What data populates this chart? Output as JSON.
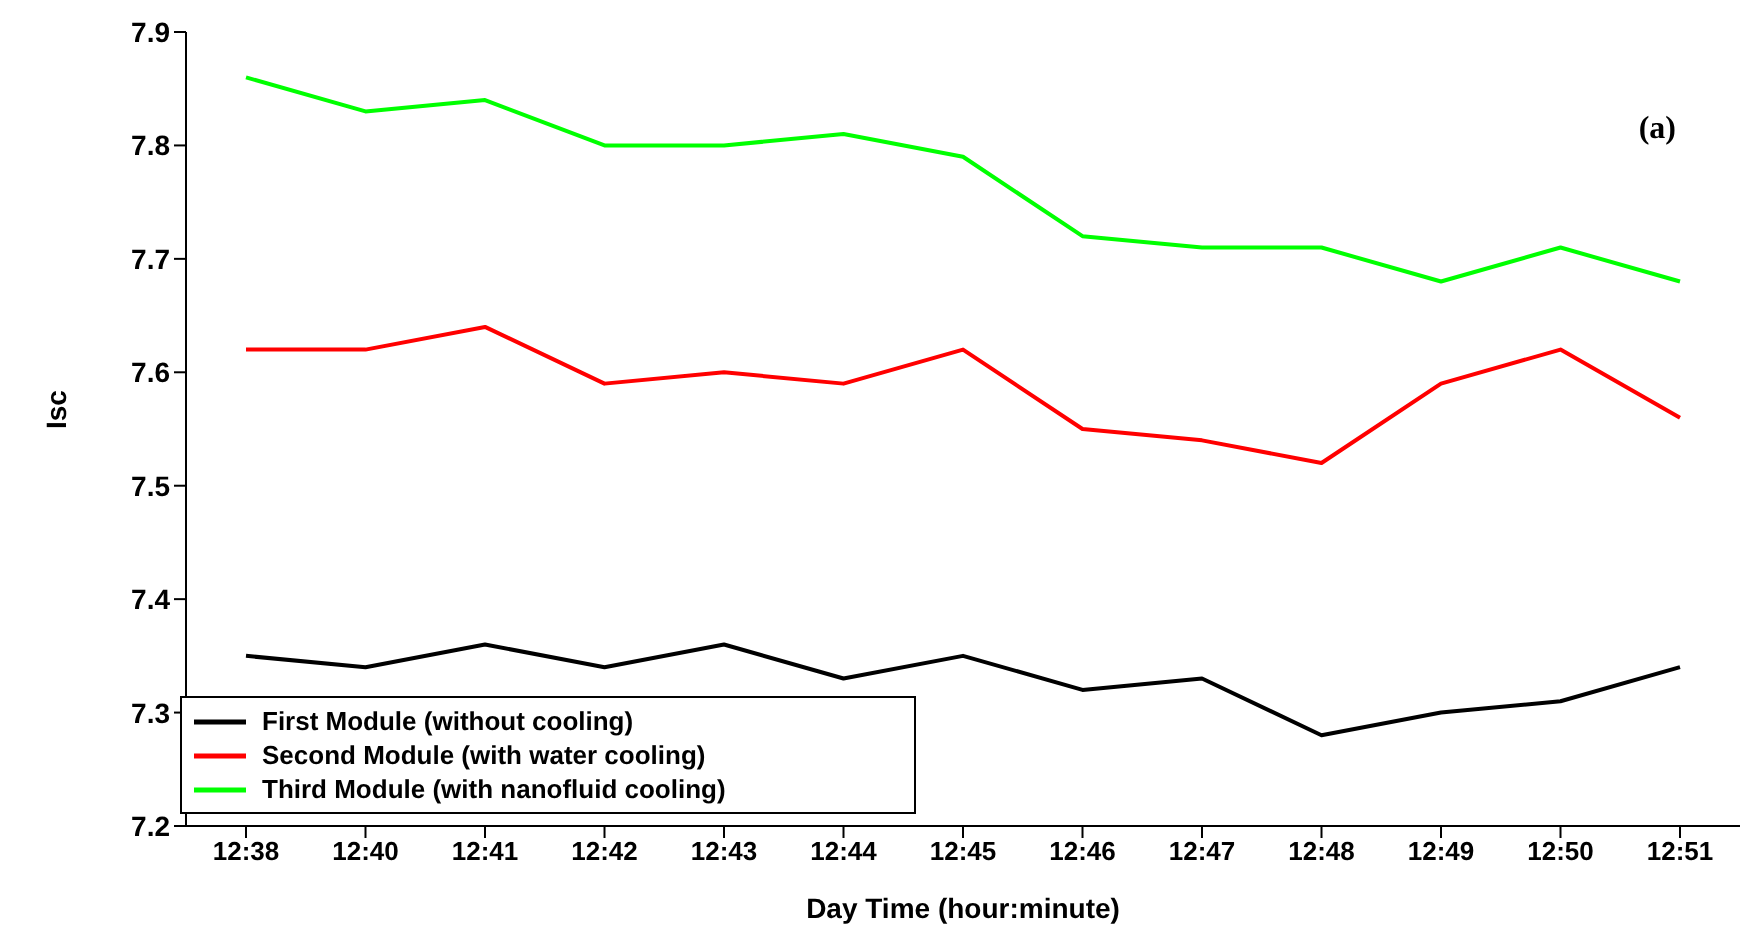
{
  "chart_data": {
    "type": "line",
    "xlabel": "Day Time (hour:minute)",
    "ylabel": "Isc",
    "annotations": [
      "(a)"
    ],
    "categories": [
      "12:38",
      "12:40",
      "12:41",
      "12:42",
      "12:43",
      "12:44",
      "12:45",
      "12:46",
      "12:47",
      "12:48",
      "12:49",
      "12:50",
      "12:51"
    ],
    "series": [
      {
        "name": "First Module (without cooling)",
        "color": "#000000",
        "values": [
          7.35,
          7.34,
          7.36,
          7.34,
          7.36,
          7.33,
          7.35,
          7.32,
          7.33,
          7.28,
          7.3,
          7.31,
          7.34
        ]
      },
      {
        "name": "Second Module (with water cooling)",
        "color": "#ff0000",
        "values": [
          7.62,
          7.62,
          7.64,
          7.59,
          7.6,
          7.59,
          7.62,
          7.55,
          7.54,
          7.52,
          7.59,
          7.62,
          7.56
        ]
      },
      {
        "name": "Third Module (with nanofluid cooling)",
        "color": "#00ff00",
        "values": [
          7.86,
          7.83,
          7.84,
          7.8,
          7.8,
          7.81,
          7.79,
          7.72,
          7.71,
          7.71,
          7.68,
          7.71,
          7.68
        ]
      }
    ],
    "ylim": [
      7.2,
      7.9
    ],
    "yticks": [
      7.2,
      7.3,
      7.4,
      7.5,
      7.6,
      7.7,
      7.8,
      7.9
    ],
    "grid": false,
    "legend": "bottom left",
    "marker": "none",
    "line_style": "solid"
  }
}
